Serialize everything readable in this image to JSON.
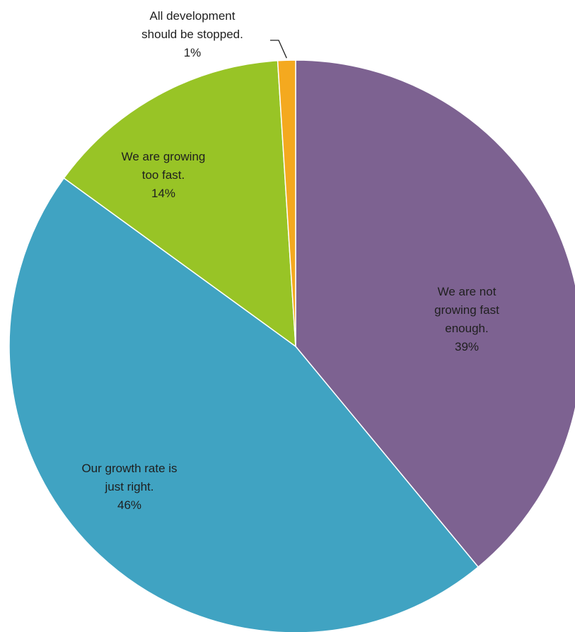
{
  "chart_data": {
    "type": "pie",
    "start_angle_deg": 0,
    "direction": "clockwise",
    "slices": [
      {
        "label_lines": [
          "We are not",
          "growing fast",
          "enough."
        ],
        "value": 39,
        "value_label": "39%",
        "color": "#7D6291"
      },
      {
        "label_lines": [
          "Our growth rate is",
          "just right."
        ],
        "value": 46,
        "value_label": "46%",
        "color": "#40A3C2"
      },
      {
        "label_lines": [
          "We are growing",
          "too fast."
        ],
        "value": 14,
        "value_label": "14%",
        "color": "#98C426"
      },
      {
        "label_lines": [
          "All development",
          "should be stopped."
        ],
        "value": 1,
        "value_label": "1%",
        "color": "#F4A91F"
      }
    ],
    "legend": "none"
  }
}
